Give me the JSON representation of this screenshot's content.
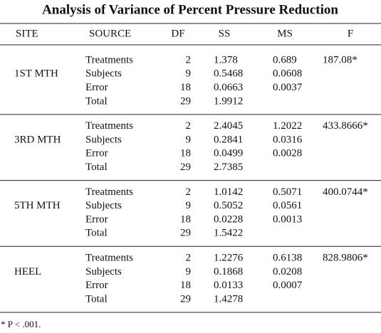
{
  "title": "Analysis of Variance of Percent Pressure Reduction",
  "header": [
    "SITE",
    "SOURCE",
    "DF",
    "SS",
    "MS",
    "F"
  ],
  "groups": [
    {
      "site": "1ST MTH",
      "f": "187.08*",
      "rows": [
        [
          "Treatments",
          "2",
          "1.378",
          "0.689"
        ],
        [
          "Subjects",
          "9",
          "0.5468",
          "0.0608"
        ],
        [
          "Error",
          "18",
          "0.0663",
          "0.0037"
        ],
        [
          "Total",
          "29",
          "1.9912"
        ]
      ]
    },
    {
      "site": "3RD MTH",
      "f": "433.8666*",
      "rows": [
        [
          "Treatments",
          "2",
          "2.4045",
          "1.2022"
        ],
        [
          "Subjects",
          "9",
          "0.2841",
          "0.0316"
        ],
        [
          "Error",
          "18",
          "0.0499",
          "0.0028"
        ],
        [
          "Total",
          "29",
          "2.7385"
        ]
      ]
    },
    {
      "site": "5TH MTH",
      "f": "400.0744*",
      "rows": [
        [
          "Treatments",
          "2",
          "1.0142",
          "0.5071"
        ],
        [
          "Subjects",
          "9",
          "0.5052",
          "0.0561"
        ],
        [
          "Error",
          "18",
          "0.0228",
          "0.0013"
        ],
        [
          "Total",
          "29",
          "1.5422"
        ]
      ]
    },
    {
      "site": "HEEL",
      "f": "828.9806*",
      "rows": [
        [
          "Treatments",
          "2",
          "1.2276",
          "0.6138"
        ],
        [
          "Subjects",
          "9",
          "0.1868",
          "0.0208"
        ],
        [
          "Error",
          "18",
          "0.0133",
          "0.0007"
        ],
        [
          "Total",
          "29",
          "1.4278"
        ]
      ]
    }
  ],
  "footnote": "* P < .001."
}
